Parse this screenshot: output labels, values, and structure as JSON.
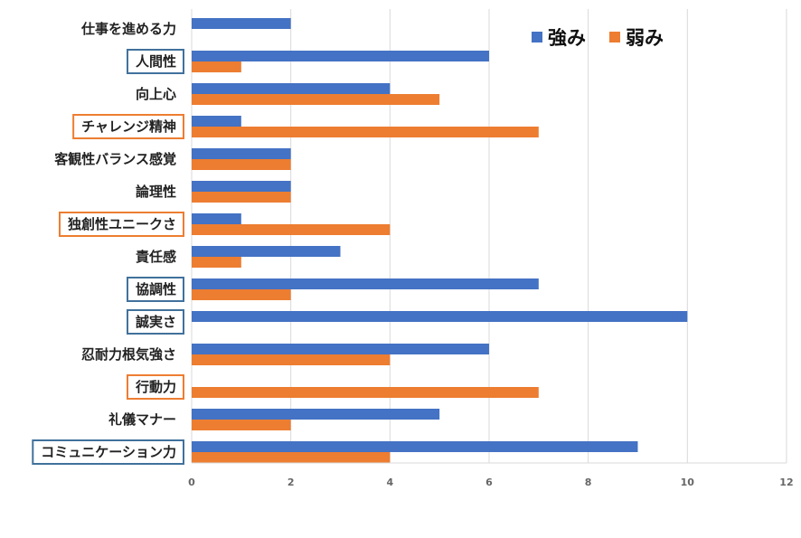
{
  "chart_data": {
    "type": "bar",
    "orientation": "horizontal",
    "title": "",
    "xlabel": "",
    "ylabel": "",
    "xlim": [
      0,
      12
    ],
    "xticks": [
      0,
      2,
      4,
      6,
      8,
      10,
      12
    ],
    "grid": true,
    "legend_position": "top-right",
    "categories": [
      "仕事を進める力",
      "人間性",
      "向上心",
      "チャレンジ精神",
      "客観性バランス感覚",
      "論理性",
      "独創性ユニークさ",
      "責任感",
      "協調性",
      "誠実さ",
      "忍耐力根気強さ",
      "行動力",
      "礼儀マナー",
      "コミュニケーション力"
    ],
    "highlight": [
      "none",
      "blue",
      "none",
      "orange",
      "none",
      "none",
      "orange",
      "none",
      "blue",
      "blue",
      "none",
      "orange",
      "none",
      "blue"
    ],
    "series": [
      {
        "name": "強み",
        "color": "#4472C4",
        "values": [
          2,
          6,
          4,
          1,
          2,
          2,
          1,
          3,
          7,
          10,
          6,
          0,
          5,
          9
        ]
      },
      {
        "name": "弱み",
        "color": "#ED7D31",
        "values": [
          0,
          1,
          5,
          7,
          2,
          2,
          4,
          1,
          2,
          0,
          4,
          7,
          2,
          4
        ]
      }
    ]
  },
  "colors": {
    "box_blue": "#41719C",
    "box_orange": "#ED7D31",
    "grid": "#D9D9D9"
  }
}
